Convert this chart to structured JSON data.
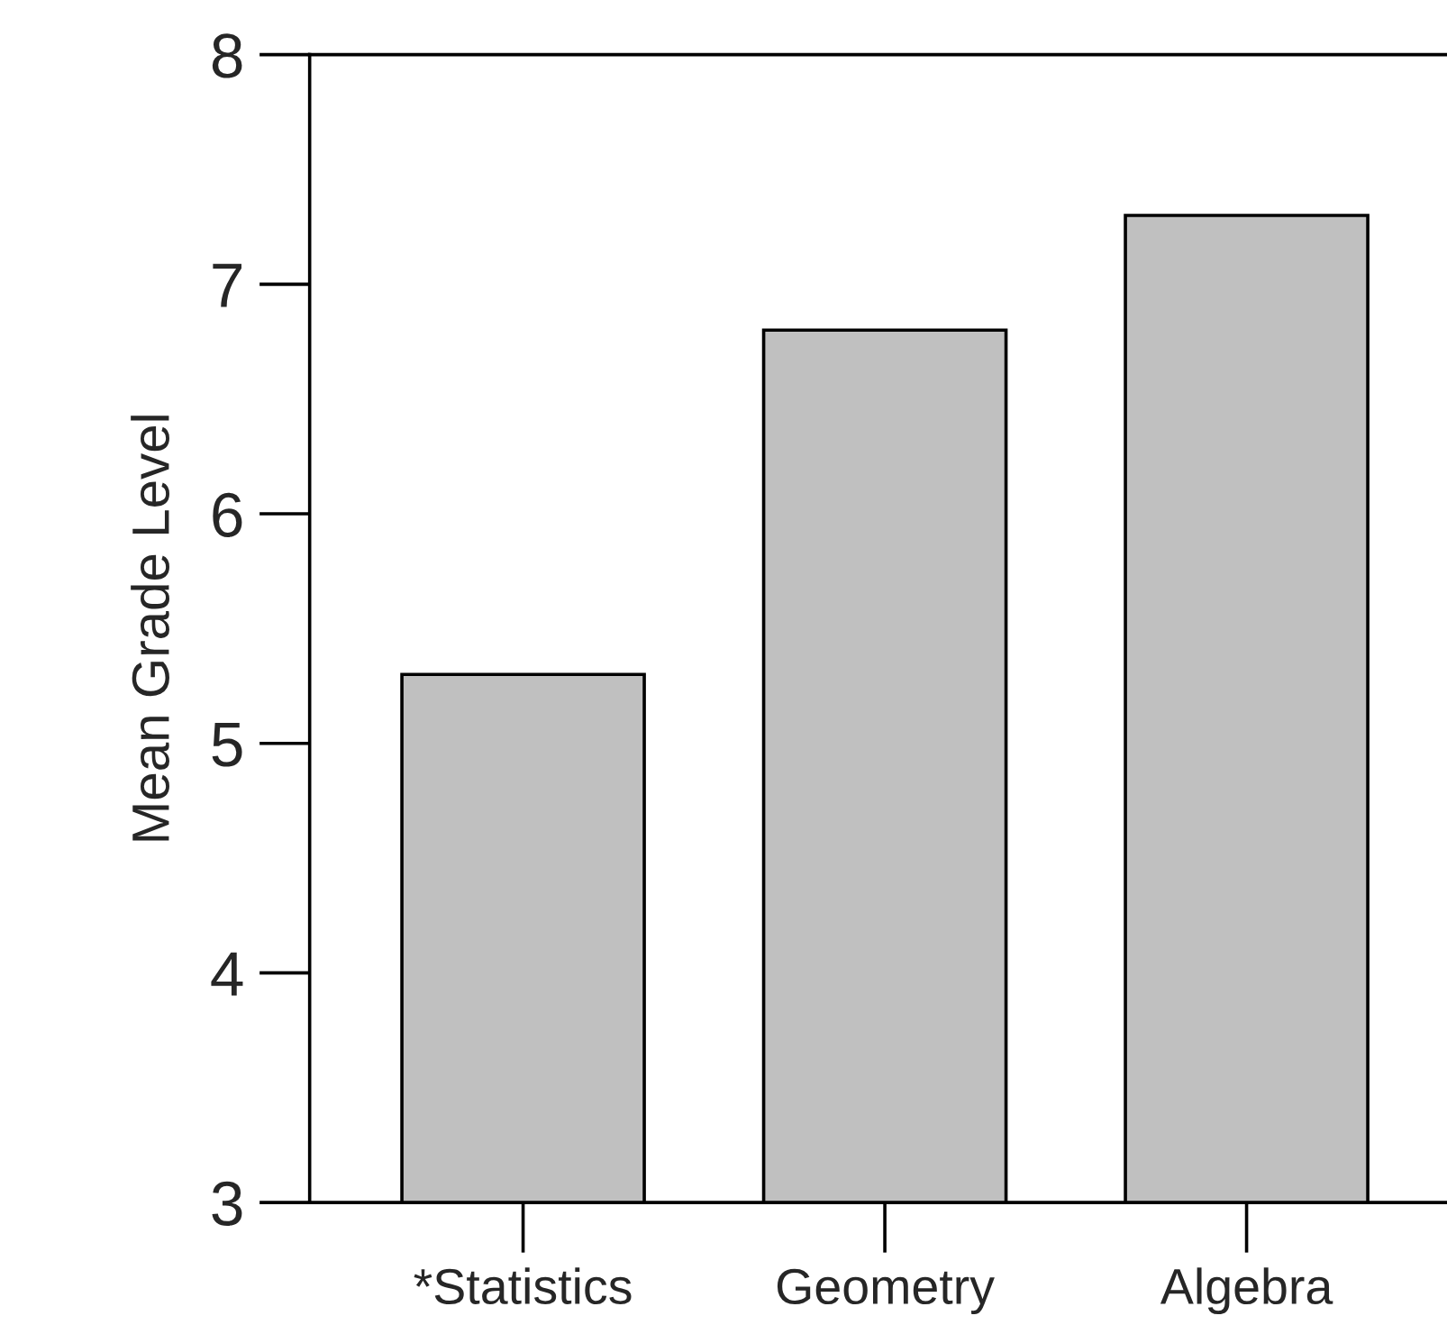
{
  "chart_data": {
    "type": "bar",
    "ylabel": "Mean Grade Level",
    "categories": [
      "*Statistics",
      "Geometry",
      "Algebra"
    ],
    "values": [
      5.3,
      6.8,
      7.3
    ],
    "color": "#c0c0c0",
    "ylim": [
      3,
      8
    ],
    "yticks": [
      3,
      4,
      5,
      6,
      7,
      8
    ],
    "grid": false,
    "legend": false
  }
}
